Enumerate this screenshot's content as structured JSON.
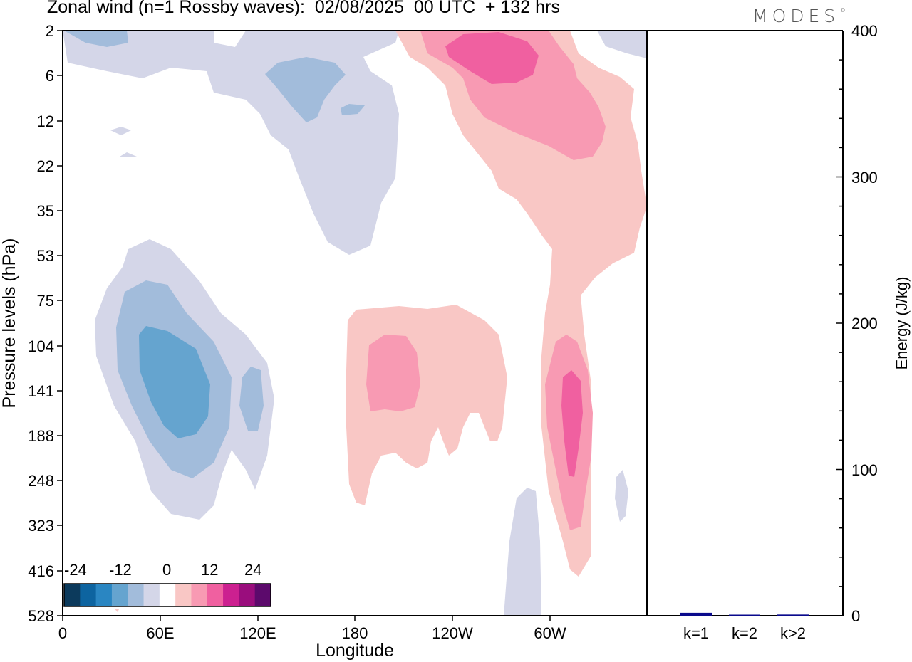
{
  "title": "Zonal wind (n=1 Rossby waves):  02/08/2025  00 UTC  + 132 hrs",
  "brand": "MODES",
  "brand_mark": "©",
  "chart_data": [
    {
      "type": "heatmap",
      "xlabel": "Longitude",
      "ylabel": "Pressure levels (hPa)",
      "x_ticks": [
        "0",
        "60E",
        "120E",
        "180",
        "120W",
        "60W"
      ],
      "y_ticks": [
        "2",
        "6",
        "12",
        "22",
        "35",
        "53",
        "75",
        "104",
        "141",
        "188",
        "248",
        "323",
        "416",
        "528"
      ],
      "colorbar": {
        "labels": [
          "-24",
          "-12",
          "0",
          "12",
          "24"
        ],
        "colors": [
          "#0c3a5c",
          "#0d64a0",
          "#2a86c2",
          "#65a4cf",
          "#a2bcdb",
          "#d4d6e8",
          "#ffffff",
          "#f9c7c5",
          "#f89ab3",
          "#f060a0",
          "#cc2090",
          "#9a0d7d",
          "#5c0a6c"
        ]
      }
    },
    {
      "type": "bar",
      "ylabel": "Energy (J/kg)",
      "ylim": [
        0,
        400
      ],
      "y_ticks": [
        "0",
        "100",
        "200",
        "300",
        "400"
      ],
      "categories": [
        "k=1",
        "k=2",
        "k>2"
      ],
      "values": [
        2,
        0.3,
        0.8
      ],
      "bar_color": "#0a0a8c"
    }
  ]
}
